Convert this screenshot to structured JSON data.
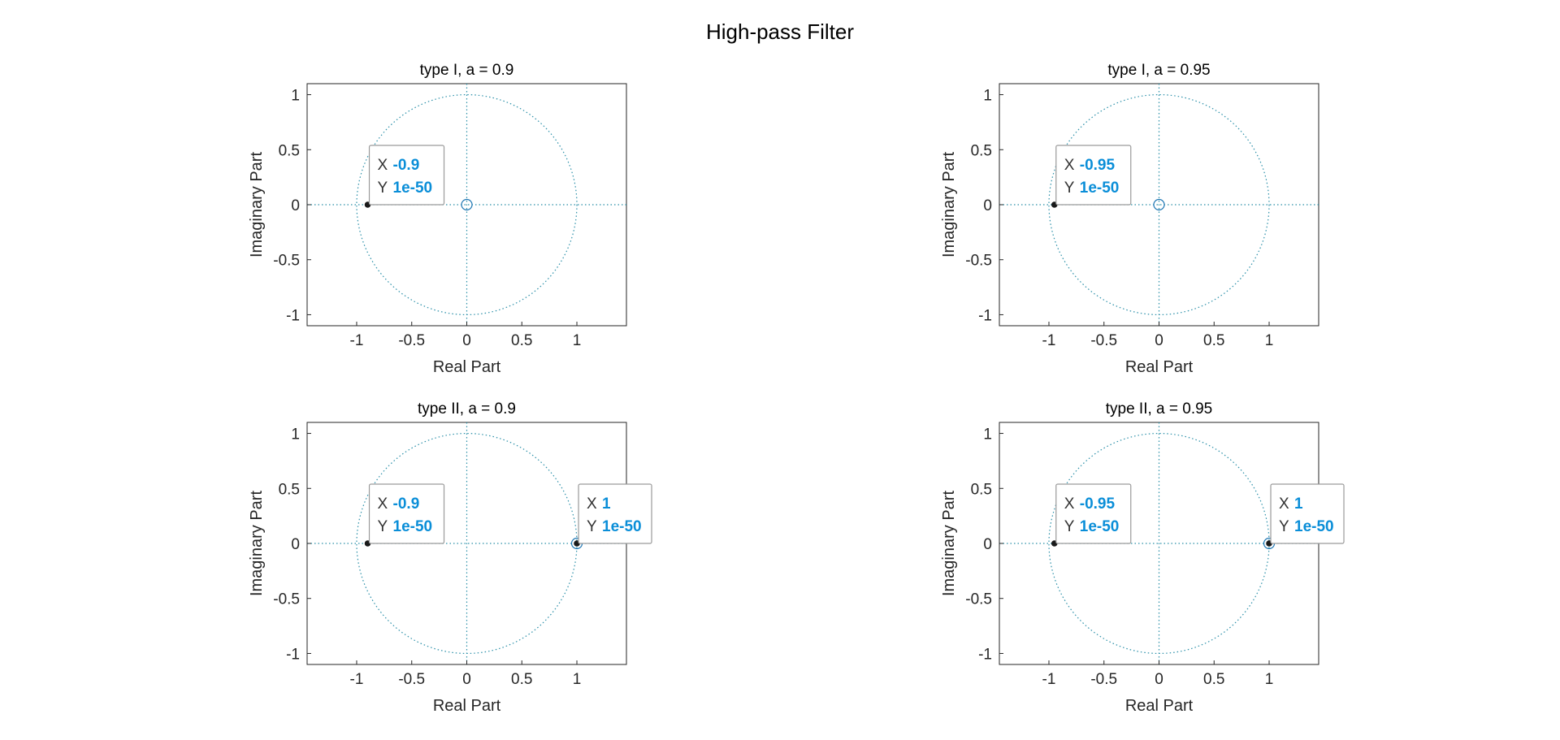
{
  "figure": {
    "title": "High-pass Filter"
  },
  "chart_data": [
    {
      "type": "scatter",
      "title": "type I, a = 0.9",
      "xlabel": "Real Part",
      "ylabel": "Imaginary Part",
      "xlim": [
        -1.45,
        1.45
      ],
      "ylim": [
        -1.1,
        1.1
      ],
      "xticks": [
        "-1",
        "-0.5",
        "0",
        "0.5",
        "1"
      ],
      "xtick_values": [
        -1,
        -0.5,
        0,
        0.5,
        1
      ],
      "yticks": [
        "1",
        "0.5",
        "0",
        "-0.5",
        "-1"
      ],
      "ytick_values": [
        1,
        0.5,
        0,
        -0.5,
        -1
      ],
      "zeros": [
        {
          "x": 0,
          "y": 0
        }
      ],
      "poles": [
        {
          "x": -0.9,
          "y": 0
        }
      ],
      "datatips": [
        {
          "x_label": "X",
          "x_value": "-0.9",
          "y_label": "Y",
          "y_value": "1e-50",
          "anchor_x": -0.9,
          "anchor_y": 0,
          "side": "right"
        }
      ]
    },
    {
      "type": "scatter",
      "title": "type I, a = 0.95",
      "xlabel": "Real Part",
      "ylabel": "Imaginary Part",
      "xlim": [
        -1.45,
        1.45
      ],
      "ylim": [
        -1.1,
        1.1
      ],
      "xticks": [
        "-1",
        "-0.5",
        "0",
        "0.5",
        "1"
      ],
      "xtick_values": [
        -1,
        -0.5,
        0,
        0.5,
        1
      ],
      "yticks": [
        "1",
        "0.5",
        "0",
        "-0.5",
        "-1"
      ],
      "ytick_values": [
        1,
        0.5,
        0,
        -0.5,
        -1
      ],
      "zeros": [
        {
          "x": 0,
          "y": 0
        }
      ],
      "poles": [
        {
          "x": -0.95,
          "y": 0
        }
      ],
      "datatips": [
        {
          "x_label": "X",
          "x_value": "-0.95",
          "y_label": "Y",
          "y_value": "1e-50",
          "anchor_x": -0.95,
          "anchor_y": 0,
          "side": "right"
        }
      ]
    },
    {
      "type": "scatter",
      "title": "type II, a = 0.9",
      "xlabel": "Real Part",
      "ylabel": "Imaginary Part",
      "xlim": [
        -1.45,
        1.45
      ],
      "ylim": [
        -1.1,
        1.1
      ],
      "xticks": [
        "-1",
        "-0.5",
        "0",
        "0.5",
        "1"
      ],
      "xtick_values": [
        -1,
        -0.5,
        0,
        0.5,
        1
      ],
      "yticks": [
        "1",
        "0.5",
        "0",
        "-0.5",
        "-1"
      ],
      "ytick_values": [
        1,
        0.5,
        0,
        -0.5,
        -1
      ],
      "zeros": [
        {
          "x": 1,
          "y": 0
        }
      ],
      "poles": [
        {
          "x": -0.9,
          "y": 0
        },
        {
          "x": 1,
          "y": 0
        }
      ],
      "datatips": [
        {
          "x_label": "X",
          "x_value": "-0.9",
          "y_label": "Y",
          "y_value": "1e-50",
          "anchor_x": -0.9,
          "anchor_y": 0,
          "side": "right"
        },
        {
          "x_label": "X",
          "x_value": "1",
          "y_label": "Y",
          "y_value": "1e-50",
          "anchor_x": 1,
          "anchor_y": 0,
          "side": "right"
        }
      ]
    },
    {
      "type": "scatter",
      "title": "type II, a = 0.95",
      "xlabel": "Real Part",
      "ylabel": "Imaginary Part",
      "xlim": [
        -1.45,
        1.45
      ],
      "ylim": [
        -1.1,
        1.1
      ],
      "xticks": [
        "-1",
        "-0.5",
        "0",
        "0.5",
        "1"
      ],
      "xtick_values": [
        -1,
        -0.5,
        0,
        0.5,
        1
      ],
      "yticks": [
        "1",
        "0.5",
        "0",
        "-0.5",
        "-1"
      ],
      "ytick_values": [
        1,
        0.5,
        0,
        -0.5,
        -1
      ],
      "zeros": [
        {
          "x": 1,
          "y": 0
        }
      ],
      "poles": [
        {
          "x": -0.95,
          "y": 0
        },
        {
          "x": 1,
          "y": 0
        }
      ],
      "datatips": [
        {
          "x_label": "X",
          "x_value": "-0.95",
          "y_label": "Y",
          "y_value": "1e-50",
          "anchor_x": -0.95,
          "anchor_y": 0,
          "side": "right"
        },
        {
          "x_label": "X",
          "x_value": "1",
          "y_label": "Y",
          "y_value": "1e-50",
          "anchor_x": 1,
          "anchor_y": 0,
          "side": "right"
        }
      ]
    }
  ],
  "colors": {
    "unit_circle": "#2a8fa8",
    "axis_lines": "#2a8fa8",
    "zero_marker": "#1f77b4",
    "pole_marker": "#1a1a1a",
    "tick_text": "#262626",
    "datatip_value": "#0a8ed8",
    "datatip_border": "#9a9a9a",
    "datatip_bg": "#ffffff"
  }
}
